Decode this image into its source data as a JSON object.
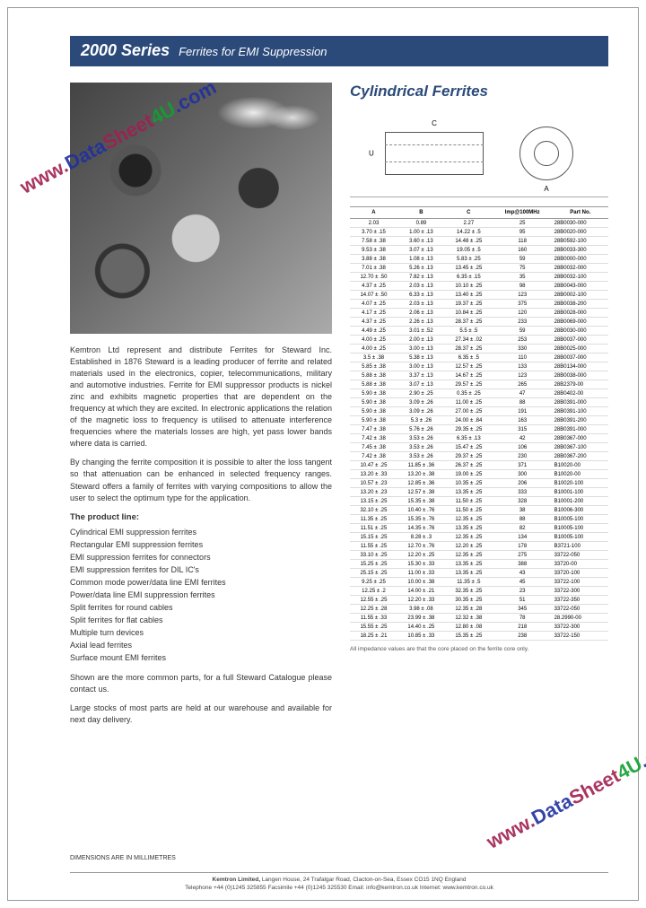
{
  "header": {
    "title": "2000 Series",
    "subtitle": "Ferrites for EMI Suppression"
  },
  "section_title": "Cylindrical Ferrites",
  "diagram": {
    "label_u": "U",
    "label_c": "C",
    "label_a": "A"
  },
  "watermark": {
    "w": "www.",
    "d": "Data",
    "s": "Sheet",
    "four": "4U",
    "com": ".com"
  },
  "body": {
    "p1": "Kemtron Ltd represent and distribute Ferrites for Steward Inc. Established in 1876 Steward is a leading producer of ferrite and related materials used in the electronics, copier, telecommunications, military and automotive industries. Ferrite for EMI suppressor products is nickel zinc and exhibits magnetic properties that are dependent on the frequency at which they are excited. In electronic applications the relation of the magnetic loss to frequency is utilised to attenuate interference frequencies where the materials losses are high, yet pass lower bands where data is carried.",
    "p2": "By changing the ferrite composition it is possible to alter the loss tangent so that attenuation can be enhanced in selected frequency ranges. Steward offers a family of ferrites with varying compositions to allow the user to select the optimum type for the application.",
    "product_line_head": "The product line:",
    "product_lines": [
      "Cylindrical EMI suppression ferrites",
      "Rectangular EMI suppression ferrites",
      "EMI suppression ferrites for connectors",
      "EMI suppression ferrites for DIL IC's",
      "Common mode power/data line EMI ferrites",
      "Power/data line EMI suppression ferrites",
      "Split ferrites for round cables",
      "Split ferrites for flat cables",
      "Multiple turn devices",
      "Axial lead ferrites",
      "Surface mount EMI ferrites"
    ],
    "p3": "Shown are the more common parts, for a full Steward Catalogue please contact us.",
    "p4": "Large stocks of most parts are held at our warehouse and available for next day delivery."
  },
  "table": {
    "headers": [
      "A",
      "B",
      "C",
      "Imp@100MHz",
      "Part No."
    ],
    "rows": [
      [
        "2.03",
        "0.89",
        "2.27",
        "25",
        "28B0030-000"
      ],
      [
        "3.70 ± .15",
        "1.00 ± .13",
        "14.22 ± .5",
        "95",
        "28B0020-000"
      ],
      [
        "7.58 ± .38",
        "3.60 ± .13",
        "14.48 ± .25",
        "118",
        "28B0592-100"
      ],
      [
        "9.53 ± .38",
        "3.07 ± .13",
        "19.05 ± .5",
        "160",
        "28B0033-300"
      ],
      [
        "3.88 ± .38",
        "1.08 ± .13",
        "5.83 ± .25",
        "59",
        "28B0000-000"
      ],
      [
        "7.01 ± .38",
        "5.26 ± .13",
        "13.45 ± .25",
        "75",
        "28B0032-000"
      ],
      [
        "12.70 ± .50",
        "7.82 ± .13",
        "6.35 ± .15",
        "35",
        "28B0032-100"
      ],
      [
        "4.37 ± .25",
        "2.03 ± .13",
        "10.10 ± .25",
        "98",
        "28B0043-000"
      ],
      [
        "14.07 ± .50",
        "6.33 ± .13",
        "13.40 ± .25",
        "123",
        "28B0002-100"
      ],
      [
        "4.07 ± .25",
        "2.03 ± .13",
        "19.37 ± .25",
        "375",
        "28B0038-200"
      ],
      [
        "4.17 ± .25",
        "2.06 ± .13",
        "10.84 ± .25",
        "120",
        "28B0028-000"
      ],
      [
        "4.37 ± .25",
        "2.26 ± .13",
        "28.37 ± .25",
        "233",
        "28B0069-000"
      ],
      [
        "4.49 ± .25",
        "3.01 ± .52",
        "5.5 ± .5",
        "59",
        "28B0030-000"
      ],
      [
        "4.00 ± .25",
        "2.00 ± .13",
        "27.34 ± .02",
        "253",
        "28B0037-000"
      ],
      [
        "4.00 ± .25",
        "3.00 ± .13",
        "28.37 ± .25",
        "330",
        "28B0025-000"
      ],
      [
        "3.5 ± .38",
        "5.38 ± .13",
        "6.35 ± .5",
        "110",
        "28B0037-000"
      ],
      [
        "5.85 ± .38",
        "3.00 ± .13",
        "12.57 ± .25",
        "133",
        "28B0134-000"
      ],
      [
        "5.88 ± .38",
        "3.37 ± .13",
        "14.67 ± .25",
        "123",
        "28B0038-000"
      ],
      [
        "5.88 ± .38",
        "3.07 ± .13",
        "29.57 ± .25",
        "265",
        "28B2379-00"
      ],
      [
        "5.90 ± .38",
        "2.90 ± .25",
        "0.35 ± .25",
        "47",
        "28B0402-00"
      ],
      [
        "5.90 ± .38",
        "3.09 ± .26",
        "11.00 ± .25",
        "88",
        "28B0391-000"
      ],
      [
        "5.90 ± .38",
        "3.09 ± .26",
        "27.00 ± .25",
        "191",
        "28B0391-100"
      ],
      [
        "5.90 ± .38",
        "5.3 ± .26",
        "24.00 ± .84",
        "163",
        "28B0391-200"
      ],
      [
        "7.47 ± .38",
        "5.76 ± .26",
        "29.35 ± .25",
        "315",
        "28B0391-000"
      ],
      [
        "7.42 ± .38",
        "3.53 ± .26",
        "6.35 ± .13",
        "42",
        "28B0367-000"
      ],
      [
        "7.45 ± .38",
        "3.53 ± .26",
        "15.47 ± .25",
        "106",
        "28B0367-100"
      ],
      [
        "7.42 ± .38",
        "3.53 ± .26",
        "29.37 ± .25",
        "230",
        "28B0367-200"
      ],
      [
        "10.47 ± .25",
        "11.85 ± .36",
        "26.37 ± .25",
        "371",
        "B10020-00"
      ],
      [
        "13.20 ± .33",
        "13.20 ± .38",
        "19.00 ± .25",
        "300",
        "B10020-00"
      ],
      [
        "10.57 ± .23",
        "12.85 ± .36",
        "10.35 ± .25",
        "206",
        "B10020-100"
      ],
      [
        "13.20 ± .23",
        "12.57 ± .38",
        "13.35 ± .25",
        "333",
        "B10001-100"
      ],
      [
        "13.15 ± .25",
        "15.35 ± .38",
        "11.50 ± .25",
        "328",
        "B10001-200"
      ],
      [
        "32.10 ± .25",
        "10.40 ± .76",
        "11.50 ± .25",
        "38",
        "B10006-300"
      ],
      [
        "11.35 ± .25",
        "15.35 ± .76",
        "12.35 ± .25",
        "88",
        "B10005-100"
      ],
      [
        "11.51 ± .25",
        "14.35 ± .76",
        "13.35 ± .25",
        "82",
        "B10005-100"
      ],
      [
        "15.15 ± .25",
        "8.28 ± .3",
        "12.35 ± .25",
        "134",
        "B10005-100"
      ],
      [
        "11.55 ± .25",
        "12.70 ± .76",
        "12.20 ± .25",
        "178",
        "B3721-100"
      ],
      [
        "33.10 ± .25",
        "12.20 ± .25",
        "12.35 ± .25",
        "275",
        "33722-050"
      ],
      [
        "15.25 ± .25",
        "15.30 ± .33",
        "13.35 ± .25",
        "388",
        "33720-00"
      ],
      [
        "25.15 ± .25",
        "11.00 ± .33",
        "13.35 ± .25",
        "43",
        "33720-100"
      ],
      [
        "9.25 ± .25",
        "10.00 ± .38",
        "11.35 ± .5",
        "45",
        "33722-100"
      ],
      [
        "12.25 ± .2",
        "14.00 ± .21",
        "32.35 ± .25",
        "23",
        "33722-300"
      ],
      [
        "12.55 ± .25",
        "12.20 ± .33",
        "30.35 ± .25",
        "51",
        "33722-350"
      ],
      [
        "12.25 ± .28",
        "3.98 ± .08",
        "12.35 ± .28",
        "345",
        "33722-050"
      ],
      [
        "11.55 ± .33",
        "23.99 ± .38",
        "12.32 ± .38",
        "78",
        "28.2990-00"
      ],
      [
        "15.55 ± .25",
        "14.40 ± .25",
        "12.80 ± .08",
        "218",
        "33722-300"
      ],
      [
        "18.25 ± .21",
        "10.85 ± .33",
        "15.35 ± .25",
        "238",
        "33722-150"
      ]
    ],
    "note": "All impedance values are that the core placed on the ferrite core only."
  },
  "dim_note": "DIMENSIONS ARE IN MILLIMETRES",
  "footer": {
    "company": "Kemtron Limited,",
    "address": "Langen House, 24 Trafalgar Road, Clacton-on-Sea, Essex CO15 1NQ England",
    "contact": "Telephone +44 (0)1245 325855   Facsimile +44 (0)1245 325530   Email: info@kemtron.co.uk   Internet: www.kemtron.co.uk"
  },
  "colors": {
    "header_bg": "#2b4a7a",
    "accent": "#2b4a7a"
  }
}
